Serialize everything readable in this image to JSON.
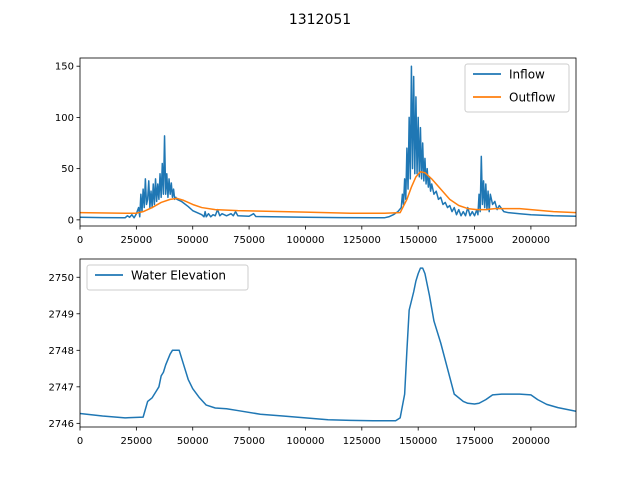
{
  "figure": {
    "suptitle": "1312051"
  },
  "chart_data": [
    {
      "type": "line",
      "title": "",
      "xlabel": "",
      "ylabel": "",
      "xlim": [
        0,
        220000
      ],
      "ylim": [
        -6,
        158
      ],
      "xticks": [
        0,
        25000,
        50000,
        75000,
        100000,
        125000,
        150000,
        175000,
        200000
      ],
      "yticks": [
        0,
        50,
        100,
        150
      ],
      "grid": false,
      "legend_position": "top-right",
      "series": [
        {
          "name": "Inflow",
          "color": "#1f77b4",
          "points": [
            [
              0,
              2.5
            ],
            [
              10000,
              2.2
            ],
            [
              20000,
              2.0
            ],
            [
              21000,
              4
            ],
            [
              22000,
              2.5
            ],
            [
              23000,
              5
            ],
            [
              24000,
              2
            ],
            [
              25000,
              6
            ],
            [
              26000,
              12
            ],
            [
              26500,
              3
            ],
            [
              27000,
              25
            ],
            [
              27500,
              8
            ],
            [
              28000,
              30
            ],
            [
              28500,
              12
            ],
            [
              29000,
              40
            ],
            [
              29500,
              15
            ],
            [
              30000,
              20
            ],
            [
              30500,
              38
            ],
            [
              31000,
              12
            ],
            [
              31500,
              28
            ],
            [
              32000,
              12
            ],
            [
              32500,
              35
            ],
            [
              33000,
              15
            ],
            [
              33500,
              40
            ],
            [
              34000,
              18
            ],
            [
              34500,
              35
            ],
            [
              35000,
              20
            ],
            [
              35500,
              45
            ],
            [
              36000,
              22
            ],
            [
              36500,
              55
            ],
            [
              37000,
              25
            ],
            [
              37500,
              82
            ],
            [
              38000,
              25
            ],
            [
              38500,
              45
            ],
            [
              39000,
              22
            ],
            [
              39500,
              40
            ],
            [
              40000,
              25
            ],
            [
              40500,
              36
            ],
            [
              41000,
              22
            ],
            [
              41500,
              30
            ],
            [
              42000,
              20
            ],
            [
              42500,
              22
            ],
            [
              43000,
              20
            ],
            [
              45000,
              18
            ],
            [
              48000,
              13
            ],
            [
              50000,
              9
            ],
            [
              52000,
              7
            ],
            [
              54000,
              5
            ],
            [
              55000,
              3
            ],
            [
              55500,
              8
            ],
            [
              56000,
              3
            ],
            [
              57000,
              6
            ],
            [
              58000,
              3
            ],
            [
              59000,
              5
            ],
            [
              60000,
              4
            ],
            [
              61000,
              10
            ],
            [
              62000,
              4
            ],
            [
              63000,
              6
            ],
            [
              65000,
              4
            ],
            [
              67000,
              6
            ],
            [
              68000,
              4
            ],
            [
              69000,
              8
            ],
            [
              70000,
              4
            ],
            [
              75000,
              3.5
            ],
            [
              77000,
              6
            ],
            [
              78000,
              3.3
            ],
            [
              85000,
              3.0
            ],
            [
              100000,
              2.6
            ],
            [
              115000,
              2.2
            ],
            [
              130000,
              2.0
            ],
            [
              135000,
              2.0
            ],
            [
              137000,
              3
            ],
            [
              139000,
              5
            ],
            [
              141000,
              8
            ],
            [
              142500,
              12
            ],
            [
              143000,
              25
            ],
            [
              143500,
              15
            ],
            [
              144000,
              40
            ],
            [
              144500,
              20
            ],
            [
              145000,
              70
            ],
            [
              145500,
              30
            ],
            [
              146000,
              100
            ],
            [
              146500,
              40
            ],
            [
              147000,
              150
            ],
            [
              147500,
              50
            ],
            [
              148000,
              140
            ],
            [
              148500,
              45
            ],
            [
              149000,
              120
            ],
            [
              149500,
              45
            ],
            [
              150000,
              100
            ],
            [
              150500,
              42
            ],
            [
              151000,
              90
            ],
            [
              151500,
              40
            ],
            [
              152000,
              75
            ],
            [
              152500,
              38
            ],
            [
              153000,
              60
            ],
            [
              153500,
              35
            ],
            [
              154000,
              50
            ],
            [
              154500,
              32
            ],
            [
              155000,
              42
            ],
            [
              155500,
              28
            ],
            [
              156000,
              35
            ],
            [
              157000,
              25
            ],
            [
              158000,
              28
            ],
            [
              159000,
              20
            ],
            [
              160000,
              22
            ],
            [
              161000,
              15
            ],
            [
              162000,
              17
            ],
            [
              163000,
              12
            ],
            [
              164000,
              14
            ],
            [
              165000,
              8
            ],
            [
              166000,
              12
            ],
            [
              167000,
              5
            ],
            [
              168000,
              10
            ],
            [
              169000,
              4
            ],
            [
              170000,
              8
            ],
            [
              171000,
              4
            ],
            [
              172000,
              12
            ],
            [
              173000,
              4
            ],
            [
              174000,
              8
            ],
            [
              175000,
              4
            ],
            [
              176000,
              10
            ],
            [
              176500,
              5
            ],
            [
              177000,
              25
            ],
            [
              177500,
              8
            ],
            [
              178000,
              62
            ],
            [
              178500,
              15
            ],
            [
              179000,
              38
            ],
            [
              179500,
              12
            ],
            [
              180000,
              35
            ],
            [
              180500,
              10
            ],
            [
              181000,
              28
            ],
            [
              181500,
              8
            ],
            [
              182000,
              25
            ],
            [
              183000,
              15
            ],
            [
              184000,
              18
            ],
            [
              185000,
              10
            ],
            [
              186000,
              14
            ],
            [
              188000,
              8
            ],
            [
              190000,
              7
            ],
            [
              195000,
              6
            ],
            [
              200000,
              5
            ],
            [
              210000,
              4
            ],
            [
              220000,
              3.5
            ]
          ]
        },
        {
          "name": "Outflow",
          "color": "#ff7f0e",
          "points": [
            [
              0,
              7
            ],
            [
              20000,
              6.5
            ],
            [
              25000,
              6.5
            ],
            [
              28000,
              8
            ],
            [
              32000,
              12
            ],
            [
              36000,
              17
            ],
            [
              40000,
              20
            ],
            [
              43000,
              21
            ],
            [
              46000,
              19
            ],
            [
              50000,
              15
            ],
            [
              54000,
              12
            ],
            [
              60000,
              10
            ],
            [
              70000,
              9
            ],
            [
              80000,
              8.5
            ],
            [
              100000,
              7.5
            ],
            [
              120000,
              6.5
            ],
            [
              135000,
              6.5
            ],
            [
              142000,
              7
            ],
            [
              145000,
              20
            ],
            [
              147000,
              32
            ],
            [
              149000,
              42
            ],
            [
              151000,
              47
            ],
            [
              153000,
              46
            ],
            [
              156000,
              40
            ],
            [
              160000,
              30
            ],
            [
              164000,
              20
            ],
            [
              168000,
              14
            ],
            [
              172000,
              11
            ],
            [
              176000,
              10
            ],
            [
              180000,
              10
            ],
            [
              184000,
              11
            ],
            [
              190000,
              11
            ],
            [
              195000,
              11
            ],
            [
              200000,
              10
            ],
            [
              210000,
              8
            ],
            [
              220000,
              7
            ]
          ]
        }
      ]
    },
    {
      "type": "line",
      "title": "",
      "xlabel": "",
      "ylabel": "",
      "xlim": [
        0,
        220000
      ],
      "ylim": [
        2745.9,
        2750.5
      ],
      "xticks": [
        0,
        25000,
        50000,
        75000,
        100000,
        125000,
        150000,
        175000,
        200000
      ],
      "yticks": [
        2746,
        2747,
        2748,
        2749,
        2750
      ],
      "grid": false,
      "legend_position": "top-left",
      "series": [
        {
          "name": "Water Elevation",
          "color": "#1f77b4",
          "points": [
            [
              0,
              2746.27
            ],
            [
              10000,
              2746.2
            ],
            [
              20000,
              2746.15
            ],
            [
              28000,
              2746.17
            ],
            [
              30000,
              2746.6
            ],
            [
              32000,
              2746.7
            ],
            [
              34000,
              2746.9
            ],
            [
              35000,
              2747.0
            ],
            [
              36000,
              2747.3
            ],
            [
              37000,
              2747.4
            ],
            [
              38000,
              2747.6
            ],
            [
              39000,
              2747.75
            ],
            [
              40000,
              2747.9
            ],
            [
              41000,
              2748.0
            ],
            [
              44000,
              2748.0
            ],
            [
              46000,
              2747.6
            ],
            [
              48000,
              2747.2
            ],
            [
              50000,
              2746.95
            ],
            [
              53000,
              2746.7
            ],
            [
              56000,
              2746.5
            ],
            [
              60000,
              2746.42
            ],
            [
              65000,
              2746.4
            ],
            [
              70000,
              2746.35
            ],
            [
              80000,
              2746.25
            ],
            [
              90000,
              2746.2
            ],
            [
              100000,
              2746.15
            ],
            [
              110000,
              2746.1
            ],
            [
              120000,
              2746.08
            ],
            [
              130000,
              2746.07
            ],
            [
              140000,
              2746.07
            ],
            [
              142000,
              2746.15
            ],
            [
              144000,
              2746.8
            ],
            [
              145000,
              2748.0
            ],
            [
              146000,
              2749.1
            ],
            [
              148000,
              2749.6
            ],
            [
              149000,
              2749.9
            ],
            [
              150000,
              2750.1
            ],
            [
              151000,
              2750.25
            ],
            [
              152000,
              2750.25
            ],
            [
              153000,
              2750.1
            ],
            [
              155000,
              2749.5
            ],
            [
              157000,
              2748.8
            ],
            [
              160000,
              2748.2
            ],
            [
              163000,
              2747.5
            ],
            [
              166000,
              2746.8
            ],
            [
              170000,
              2746.6
            ],
            [
              172000,
              2746.55
            ],
            [
              175000,
              2746.53
            ],
            [
              177000,
              2746.55
            ],
            [
              180000,
              2746.65
            ],
            [
              183000,
              2746.78
            ],
            [
              187000,
              2746.8
            ],
            [
              195000,
              2746.8
            ],
            [
              200000,
              2746.78
            ],
            [
              203000,
              2746.65
            ],
            [
              207000,
              2746.52
            ],
            [
              212000,
              2746.43
            ],
            [
              220000,
              2746.33
            ]
          ]
        }
      ]
    }
  ]
}
